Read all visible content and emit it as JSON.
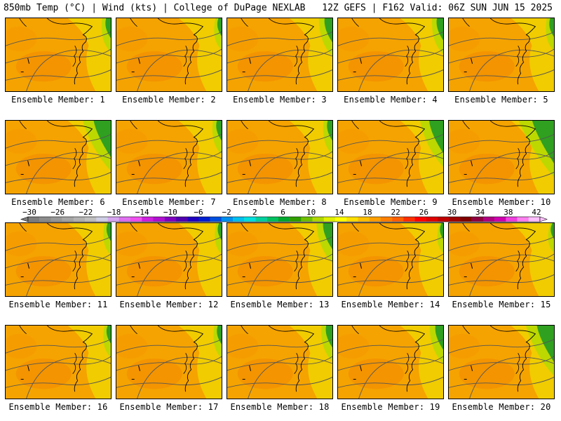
{
  "header": {
    "left": "850mb Temp (°C) | Wind (kts) | College of DuPage NEXLAB",
    "right": "12Z GEFS | F162 Valid: 06Z SUN JUN 15 2025"
  },
  "label_prefix": "Ensemble Member: ",
  "members": [
    {
      "id": 1,
      "green": 0.15
    },
    {
      "id": 2,
      "green": 0.1
    },
    {
      "id": 3,
      "green": 0.25
    },
    {
      "id": 4,
      "green": 0.2
    },
    {
      "id": 5,
      "green": 0.12
    },
    {
      "id": 6,
      "green": 0.55
    },
    {
      "id": 7,
      "green": 0.15
    },
    {
      "id": 8,
      "green": 0.15
    },
    {
      "id": 9,
      "green": 0.45
    },
    {
      "id": 10,
      "green": 0.7
    },
    {
      "id": 11,
      "green": 0.1
    },
    {
      "id": 12,
      "green": 0.08
    },
    {
      "id": 13,
      "green": 0.3
    },
    {
      "id": 14,
      "green": 0.05
    },
    {
      "id": 15,
      "green": 0.05
    },
    {
      "id": 16,
      "green": 0.1
    },
    {
      "id": 17,
      "green": 0.12
    },
    {
      "id": 18,
      "green": 0.2
    },
    {
      "id": 19,
      "green": 0.25
    },
    {
      "id": 20,
      "green": 0.55
    }
  ],
  "colorbar": {
    "labels": [
      "−30",
      "−26",
      "−22",
      "−18",
      "−14",
      "−10",
      "−6",
      "−2",
      "2",
      "6",
      "10",
      "14",
      "18",
      "22",
      "26",
      "30",
      "34",
      "38",
      "42"
    ],
    "colors": [
      "#7f7f7f",
      "#8c8c8c",
      "#999999",
      "#a6a6a6",
      "#b3b3b3",
      "#c0c0c0",
      "#cfcfe6",
      "#d6a6f0",
      "#e070f0",
      "#f050f0",
      "#d020e0",
      "#b010d0",
      "#8000c0",
      "#5000b0",
      "#2000c0",
      "#0020d0",
      "#0050e0",
      "#0090f0",
      "#00c0f0",
      "#00e0e0",
      "#00d0a0",
      "#00c060",
      "#00a830",
      "#30a000",
      "#70c000",
      "#b0d800",
      "#e0f000",
      "#ffff00",
      "#ffe000",
      "#ffc000",
      "#ffa000",
      "#ff8000",
      "#ff6000",
      "#ff3000",
      "#ff0000",
      "#e00000",
      "#c00000",
      "#a00000",
      "#800000",
      "#900040",
      "#b00080",
      "#d000b0",
      "#f040e0",
      "#ff80f0",
      "#ffc0ff"
    ]
  }
}
